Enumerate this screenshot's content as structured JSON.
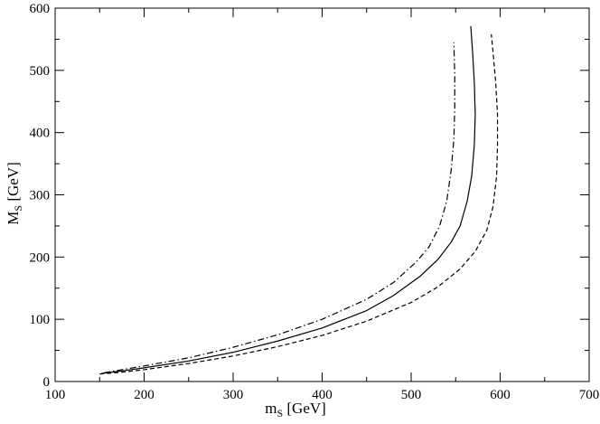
{
  "chart_data": {
    "type": "line",
    "xlabel": {
      "main": "m",
      "sub": "S",
      "unit": " [GeV]"
    },
    "ylabel": {
      "main": "M",
      "sub": "S",
      "unit": " [GeV]"
    },
    "xlim": [
      100,
      700
    ],
    "ylim": [
      0,
      600
    ],
    "xticks": [
      100,
      200,
      300,
      400,
      500,
      600,
      700
    ],
    "yticks": [
      0,
      100,
      200,
      300,
      400,
      500,
      600
    ],
    "grid": false,
    "legend": "none",
    "series": [
      {
        "style": "solid",
        "color": "#000000",
        "points": [
          [
            152,
            13
          ],
          [
            175,
            17
          ],
          [
            200,
            22
          ],
          [
            250,
            33
          ],
          [
            300,
            47
          ],
          [
            350,
            65
          ],
          [
            400,
            86
          ],
          [
            450,
            114
          ],
          [
            480,
            138
          ],
          [
            510,
            169
          ],
          [
            530,
            196
          ],
          [
            545,
            224
          ],
          [
            555,
            250
          ],
          [
            563,
            290
          ],
          [
            568,
            330
          ],
          [
            571,
            380
          ],
          [
            572,
            430
          ],
          [
            571,
            480
          ],
          [
            569,
            530
          ],
          [
            567,
            571
          ]
        ]
      },
      {
        "style": "dashed",
        "color": "#000000",
        "points": [
          [
            150,
            12
          ],
          [
            175,
            15
          ],
          [
            200,
            19
          ],
          [
            250,
            29
          ],
          [
            300,
            41
          ],
          [
            350,
            56
          ],
          [
            400,
            74
          ],
          [
            450,
            97
          ],
          [
            500,
            127
          ],
          [
            530,
            152
          ],
          [
            555,
            181
          ],
          [
            572,
            209
          ],
          [
            585,
            243
          ],
          [
            592,
            281
          ],
          [
            596,
            330
          ],
          [
            597,
            380
          ],
          [
            597,
            430
          ],
          [
            595,
            480
          ],
          [
            592,
            530
          ],
          [
            590,
            558
          ]
        ]
      },
      {
        "style": "dashdot",
        "color": "#000000",
        "points": [
          [
            155,
            14
          ],
          [
            175,
            19
          ],
          [
            200,
            25
          ],
          [
            250,
            38
          ],
          [
            300,
            55
          ],
          [
            350,
            75
          ],
          [
            400,
            100
          ],
          [
            450,
            132
          ],
          [
            480,
            159
          ],
          [
            505,
            191
          ],
          [
            520,
            216
          ],
          [
            532,
            250
          ],
          [
            540,
            290
          ],
          [
            545,
            340
          ],
          [
            548,
            390
          ],
          [
            549,
            440
          ],
          [
            549,
            490
          ],
          [
            548,
            545
          ]
        ]
      }
    ]
  }
}
